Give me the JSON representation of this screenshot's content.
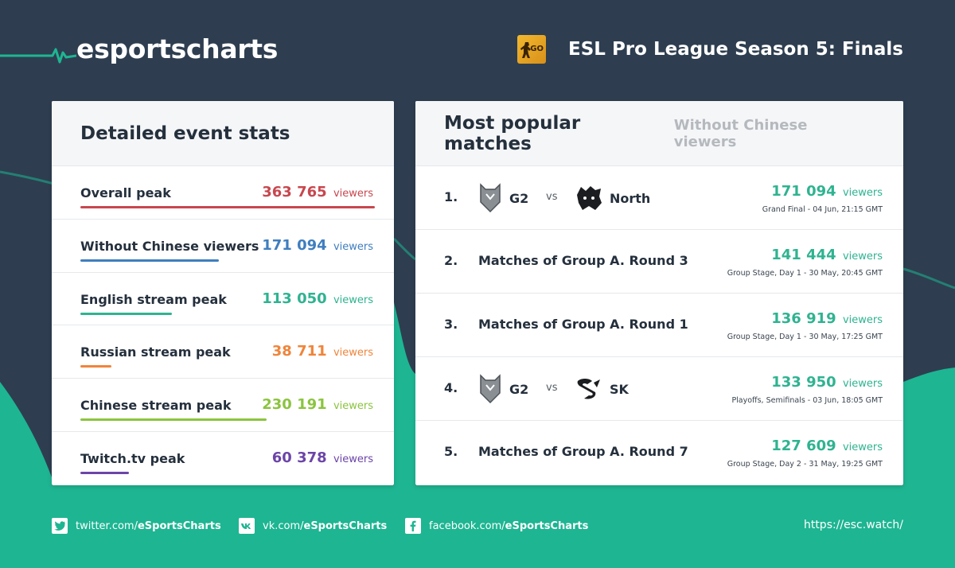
{
  "brand": {
    "name": "esportscharts"
  },
  "event": {
    "title": "ESL Pro League Season 5: Finals",
    "game_icon": "csgo-game-icon",
    "game_icon_text": "GO"
  },
  "colors": {
    "background": "#2e3e50",
    "wave": "#1eb592",
    "red": "#c8474f",
    "blue": "#3f7ebf",
    "teal": "#2fb390",
    "orange": "#f0843a",
    "green": "#8bc43f",
    "purple": "#6c45a8"
  },
  "stats": {
    "title": "Detailed event stats",
    "items": [
      {
        "label": "Overall peak",
        "value": "363 765",
        "unit": "viewers",
        "color": "#c8474f"
      },
      {
        "label": "Without Chinese viewers",
        "value": "171 094",
        "unit": "viewers",
        "color": "#3f7ebf"
      },
      {
        "label": "English stream peak",
        "value": "113 050",
        "unit": "viewers",
        "color": "#2fb390"
      },
      {
        "label": "Russian stream peak",
        "value": "38 711",
        "unit": "viewers",
        "color": "#f0843a"
      },
      {
        "label": "Chinese stream peak",
        "value": "230 191",
        "unit": "viewers",
        "color": "#8bc43f"
      },
      {
        "label": "Twitch.tv peak",
        "value": "60 378",
        "unit": "viewers",
        "color": "#6c45a8"
      }
    ]
  },
  "matches": {
    "title": "Most popular matches",
    "subtitle": "Without Chinese viewers",
    "items": [
      {
        "rank": "1.",
        "team1": "G2",
        "vs": "vs",
        "team2": "North",
        "value": "171 094",
        "unit": "viewers",
        "meta": "Grand Final - 04 Jun, 21:15 GMT"
      },
      {
        "rank": "2.",
        "title": "Matches of Group A. Round 3",
        "value": "141 444",
        "unit": "viewers",
        "meta": "Group Stage, Day 1 - 30 May, 20:45 GMT"
      },
      {
        "rank": "3.",
        "title": "Matches of Group A. Round 1",
        "value": "136 919",
        "unit": "viewers",
        "meta": "Group Stage, Day 1 - 30 May, 17:25 GMT"
      },
      {
        "rank": "4.",
        "team1": "G2",
        "vs": "vs",
        "team2": "SK",
        "value": "133 950",
        "unit": "viewers",
        "meta": "Playoffs, Semifinals - 03 Jun, 18:05 GMT"
      },
      {
        "rank": "5.",
        "title": "Matches of Group A. Round 7",
        "value": "127 609",
        "unit": "viewers",
        "meta": "Group Stage, Day 2 - 31 May, 19:25 GMT"
      }
    ]
  },
  "footer": {
    "twitter_prefix": "twitter.com/",
    "twitter_handle": "eSportsCharts",
    "vk_prefix": "vk.com/",
    "vk_handle": "eSportsCharts",
    "facebook_prefix": "facebook.com/",
    "facebook_handle": "eSportsCharts",
    "site": "https://esc.watch/"
  }
}
